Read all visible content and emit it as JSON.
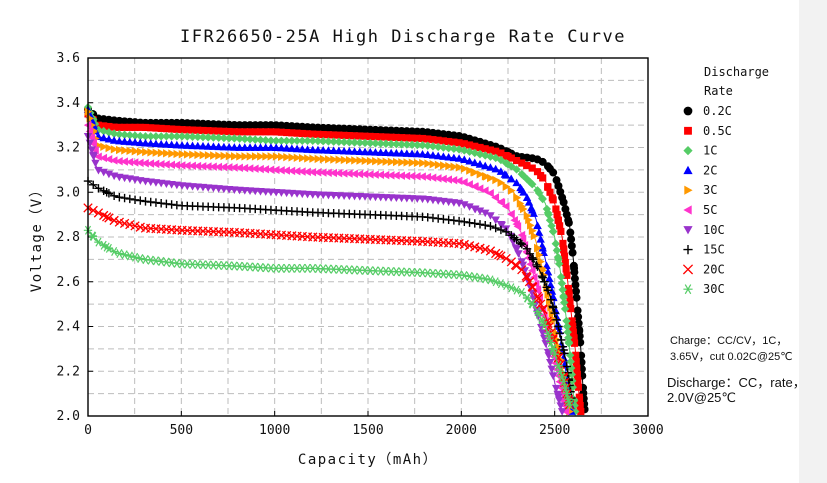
{
  "chart_data": {
    "type": "line",
    "title": "IFR26650-25A High Discharge Rate Curve",
    "xlabel": "Capacity（mAh）",
    "ylabel": "Voltage（V）",
    "xlim": [
      0,
      3000
    ],
    "ylim": [
      2.0,
      3.6
    ],
    "xticks": [
      "0",
      "500",
      "1000",
      "1500",
      "2000",
      "2500",
      "3000"
    ],
    "yticks": [
      "2.0",
      "2.2",
      "2.4",
      "2.6",
      "2.8",
      "3.0",
      "3.2",
      "3.4",
      "3.6"
    ],
    "grid": true,
    "legend_title": "Discharge Rate",
    "legend_position": "right",
    "series": [
      {
        "name": "0.2C",
        "marker": "circle",
        "color": "#000000",
        "x": [
          0,
          50,
          150,
          300,
          500,
          800,
          1000,
          1200,
          1500,
          1800,
          2000,
          2200,
          2300,
          2400,
          2450,
          2500,
          2550,
          2580,
          2600,
          2620,
          2640,
          2650,
          2660
        ],
        "y": [
          3.37,
          3.33,
          3.32,
          3.31,
          3.31,
          3.3,
          3.3,
          3.29,
          3.28,
          3.27,
          3.25,
          3.2,
          3.16,
          3.15,
          3.13,
          3.08,
          2.95,
          2.85,
          2.7,
          2.5,
          2.3,
          2.15,
          2.03
        ]
      },
      {
        "name": "0.5C",
        "marker": "square",
        "color": "#ff0000",
        "x": [
          0,
          50,
          150,
          300,
          500,
          800,
          1000,
          1200,
          1500,
          1800,
          2000,
          2200,
          2300,
          2400,
          2450,
          2500,
          2540,
          2570,
          2590,
          2610,
          2630,
          2640
        ],
        "y": [
          3.35,
          3.3,
          3.29,
          3.29,
          3.28,
          3.27,
          3.27,
          3.26,
          3.25,
          3.24,
          3.22,
          3.18,
          3.14,
          3.1,
          3.05,
          2.95,
          2.8,
          2.6,
          2.45,
          2.3,
          2.1,
          2.02
        ]
      },
      {
        "name": "1C",
        "marker": "diamond",
        "color": "#55cc66",
        "x": [
          0,
          50,
          150,
          300,
          500,
          800,
          1000,
          1200,
          1500,
          1800,
          2000,
          2200,
          2300,
          2400,
          2450,
          2500,
          2530,
          2560,
          2580,
          2600,
          2610
        ],
        "y": [
          3.38,
          3.28,
          3.26,
          3.25,
          3.25,
          3.24,
          3.23,
          3.23,
          3.22,
          3.21,
          3.19,
          3.15,
          3.1,
          3.02,
          2.95,
          2.8,
          2.65,
          2.45,
          2.3,
          2.1,
          2.02
        ]
      },
      {
        "name": "2C",
        "marker": "triangle-up",
        "color": "#0000ff",
        "x": [
          0,
          50,
          150,
          300,
          500,
          800,
          1000,
          1200,
          1500,
          1800,
          2000,
          2200,
          2300,
          2350,
          2400,
          2450,
          2500,
          2530,
          2560,
          2590
        ],
        "y": [
          3.37,
          3.25,
          3.23,
          3.22,
          3.21,
          3.2,
          3.2,
          3.19,
          3.18,
          3.17,
          3.15,
          3.1,
          3.04,
          2.98,
          2.88,
          2.7,
          2.5,
          2.35,
          2.2,
          2.02
        ]
      },
      {
        "name": "3C",
        "marker": "triangle-right",
        "color": "#ff9900",
        "x": [
          0,
          50,
          150,
          300,
          500,
          800,
          1000,
          1200,
          1500,
          1800,
          2000,
          2200,
          2280,
          2350,
          2400,
          2450,
          2500,
          2540,
          2580
        ],
        "y": [
          3.36,
          3.21,
          3.19,
          3.18,
          3.17,
          3.16,
          3.16,
          3.15,
          3.14,
          3.13,
          3.11,
          3.05,
          3.0,
          2.9,
          2.78,
          2.6,
          2.4,
          2.22,
          2.02
        ]
      },
      {
        "name": "5C",
        "marker": "triangle-left",
        "color": "#ff33cc",
        "x": [
          0,
          50,
          150,
          300,
          500,
          800,
          1000,
          1200,
          1500,
          1800,
          2000,
          2150,
          2250,
          2320,
          2380,
          2430,
          2480,
          2520,
          2560
        ],
        "y": [
          3.3,
          3.16,
          3.14,
          3.13,
          3.12,
          3.11,
          3.1,
          3.09,
          3.08,
          3.07,
          3.05,
          3.0,
          2.93,
          2.82,
          2.65,
          2.5,
          2.32,
          2.18,
          2.02
        ]
      },
      {
        "name": "10C",
        "marker": "triangle-down",
        "color": "#9933cc",
        "x": [
          0,
          50,
          150,
          300,
          500,
          800,
          1000,
          1200,
          1500,
          1800,
          2000,
          2150,
          2250,
          2320,
          2380,
          2420,
          2460,
          2500,
          2540
        ],
        "y": [
          3.25,
          3.1,
          3.07,
          3.05,
          3.03,
          3.01,
          3.0,
          2.99,
          2.98,
          2.97,
          2.95,
          2.9,
          2.83,
          2.7,
          2.55,
          2.42,
          2.3,
          2.15,
          2.02
        ]
      },
      {
        "name": "15C",
        "marker": "plus",
        "color": "#000000",
        "x": [
          0,
          50,
          150,
          300,
          500,
          800,
          1000,
          1200,
          1500,
          1800,
          2000,
          2150,
          2250,
          2350,
          2420,
          2470,
          2520,
          2560,
          2590
        ],
        "y": [
          3.05,
          3.02,
          2.98,
          2.96,
          2.94,
          2.93,
          2.92,
          2.91,
          2.9,
          2.89,
          2.87,
          2.85,
          2.82,
          2.75,
          2.65,
          2.55,
          2.4,
          2.25,
          2.08
        ]
      },
      {
        "name": "20C",
        "marker": "x",
        "color": "#ff0000",
        "x": [
          0,
          50,
          150,
          300,
          500,
          800,
          1000,
          1200,
          1500,
          1800,
          2000,
          2150,
          2250,
          2330,
          2400,
          2450,
          2500,
          2540,
          2580
        ],
        "y": [
          2.93,
          2.91,
          2.87,
          2.84,
          2.83,
          2.82,
          2.81,
          2.8,
          2.79,
          2.78,
          2.77,
          2.74,
          2.7,
          2.65,
          2.55,
          2.45,
          2.32,
          2.2,
          2.05
        ]
      },
      {
        "name": "30C",
        "marker": "asterisk",
        "color": "#55cc66",
        "x": [
          0,
          50,
          150,
          300,
          500,
          800,
          1000,
          1200,
          1500,
          1800,
          2000,
          2150,
          2250,
          2330,
          2400,
          2460,
          2510,
          2550,
          2580
        ],
        "y": [
          2.83,
          2.78,
          2.73,
          2.7,
          2.68,
          2.67,
          2.66,
          2.66,
          2.65,
          2.64,
          2.63,
          2.61,
          2.58,
          2.55,
          2.48,
          2.38,
          2.25,
          2.15,
          2.05
        ]
      }
    ]
  },
  "notes": {
    "charge_line1": "Charge：CC/CV，1C，",
    "charge_line2": "3.65V，cut 0.02C@25℃",
    "discharge_line1": "Discharge：CC，rate，",
    "discharge_line2": "2.0V@25℃"
  }
}
